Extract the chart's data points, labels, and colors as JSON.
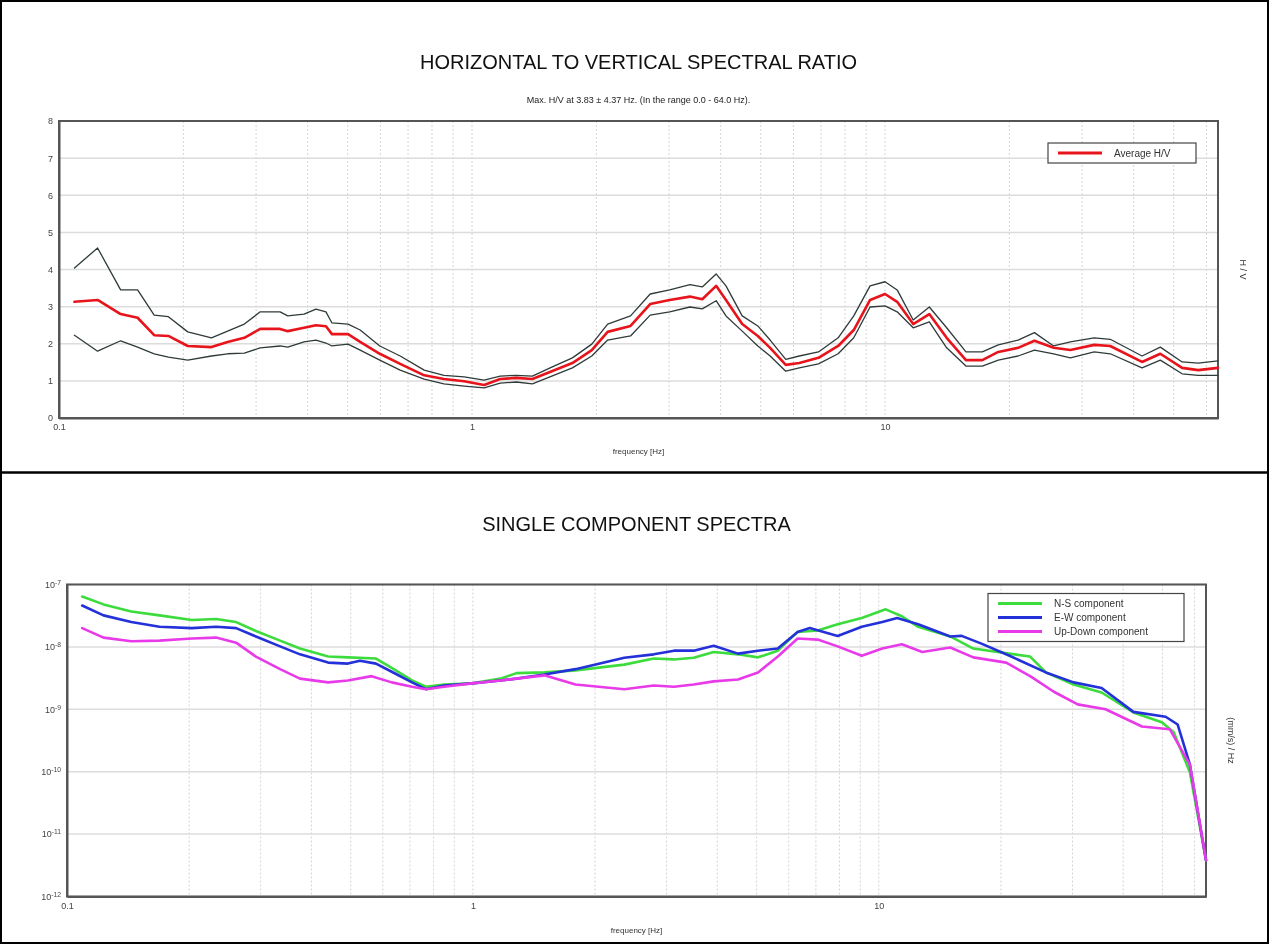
{
  "chart_data": [
    {
      "type": "line",
      "title": "HORIZONTAL TO VERTICAL SPECTRAL RATIO",
      "subtitle": "Max. H/V at 3.83 ± 4.37 Hz. (In the range 0.0 - 64.0 Hz).",
      "xlabel": "frequency [Hz]",
      "ylabel": "H / V",
      "log": "x",
      "grid": true,
      "legend": "top right",
      "marker": "none",
      "line_style": "solid",
      "xlim": [
        0.1,
        64
      ],
      "ylim": [
        0,
        8
      ],
      "xticks": [
        0.1,
        {
          "value": 0.2,
          "label": null
        },
        {
          "value": 0.3,
          "label": null
        },
        {
          "value": 0.4,
          "label": null
        },
        {
          "value": 0.5,
          "label": null
        },
        {
          "value": 0.6,
          "label": null
        },
        {
          "value": 0.7,
          "label": null
        },
        {
          "value": 0.8,
          "label": null
        },
        {
          "value": 0.9,
          "label": null
        },
        1,
        {
          "value": 2,
          "label": null
        },
        {
          "value": 3,
          "label": null
        },
        {
          "value": 4,
          "label": null
        },
        {
          "value": 5,
          "label": null
        },
        {
          "value": 6,
          "label": null
        },
        {
          "value": 7,
          "label": null
        },
        {
          "value": 8,
          "label": null
        },
        {
          "value": 9,
          "label": null
        },
        10,
        {
          "value": 20,
          "label": null
        },
        {
          "value": 30,
          "label": null
        },
        {
          "value": 40,
          "label": null
        },
        {
          "value": 50,
          "label": null
        },
        {
          "value": 60,
          "label": null
        }
      ],
      "yticks": [
        0,
        1,
        2,
        3,
        4,
        5,
        6,
        7,
        8
      ],
      "x": [
        0.109,
        0.124,
        0.141,
        0.155,
        0.17,
        0.184,
        0.205,
        0.234,
        0.256,
        0.281,
        0.307,
        0.343,
        0.358,
        0.392,
        0.419,
        0.443,
        0.458,
        0.501,
        0.536,
        0.598,
        0.67,
        0.766,
        0.855,
        0.957,
        1.07,
        1.17,
        1.28,
        1.4,
        1.56,
        1.75,
        1.95,
        2.13,
        2.42,
        2.7,
        3.01,
        3.37,
        3.61,
        3.9,
        4.12,
        4.51,
        4.92,
        5.27,
        5.75,
        6.2,
        6.9,
        7.7,
        8.4,
        9.2,
        10.0,
        10.7,
        11.7,
        12.8,
        14.1,
        15.7,
        17.2,
        18.8,
        21.0,
        23.0,
        25.6,
        28.1,
        32.1,
        35.1,
        41.9,
        46.4,
        52.4,
        57.3,
        64
      ],
      "series": [
        {
          "color": "#2f3a3a",
          "values": [
            4.04,
            4.58,
            3.45,
            3.45,
            2.77,
            2.73,
            2.32,
            2.16,
            2.34,
            2.53,
            2.86,
            2.86,
            2.75,
            2.8,
            2.93,
            2.86,
            2.56,
            2.53,
            2.37,
            1.94,
            1.67,
            1.29,
            1.15,
            1.11,
            1.02,
            1.13,
            1.15,
            1.13,
            1.37,
            1.62,
            1.99,
            2.53,
            2.75,
            3.34,
            3.45,
            3.59,
            3.53,
            3.88,
            3.56,
            2.75,
            2.48,
            2.1,
            1.58,
            1.67,
            1.78,
            2.16,
            2.75,
            3.56,
            3.67,
            3.45,
            2.64,
            2.99,
            2.43,
            1.78,
            1.78,
            1.97,
            2.1,
            2.3,
            1.94,
            2.05,
            2.16,
            2.12,
            1.67,
            1.91,
            1.51,
            1.48,
            1.54
          ]
        },
        {
          "color": "#2f3a3a",
          "values": [
            2.23,
            1.8,
            2.08,
            1.91,
            1.73,
            1.64,
            1.56,
            1.67,
            1.73,
            1.75,
            1.89,
            1.94,
            1.91,
            2.05,
            2.1,
            2.02,
            1.94,
            1.99,
            1.83,
            1.56,
            1.29,
            1.05,
            0.92,
            0.86,
            0.81,
            0.94,
            0.97,
            0.92,
            1.13,
            1.35,
            1.67,
            2.1,
            2.21,
            2.77,
            2.86,
            2.99,
            2.94,
            3.16,
            2.75,
            2.34,
            1.94,
            1.67,
            1.26,
            1.35,
            1.46,
            1.73,
            2.16,
            2.99,
            3.02,
            2.86,
            2.43,
            2.59,
            1.89,
            1.4,
            1.4,
            1.56,
            1.67,
            1.83,
            1.73,
            1.62,
            1.78,
            1.73,
            1.35,
            1.56,
            1.19,
            1.15,
            1.15
          ]
        },
        {
          "name": "Average H/V",
          "color": "#e8141c",
          "values": [
            3.13,
            3.18,
            2.8,
            2.7,
            2.23,
            2.21,
            1.94,
            1.91,
            2.05,
            2.16,
            2.4,
            2.4,
            2.34,
            2.43,
            2.5,
            2.47,
            2.26,
            2.26,
            2.05,
            1.73,
            1.46,
            1.15,
            1.05,
            0.99,
            0.89,
            1.05,
            1.08,
            1.05,
            1.26,
            1.48,
            1.83,
            2.32,
            2.48,
            3.07,
            3.18,
            3.27,
            3.2,
            3.56,
            3.18,
            2.53,
            2.21,
            1.89,
            1.43,
            1.48,
            1.62,
            1.94,
            2.37,
            3.18,
            3.34,
            3.13,
            2.53,
            2.8,
            2.16,
            1.56,
            1.56,
            1.78,
            1.89,
            2.08,
            1.89,
            1.83,
            1.97,
            1.94,
            1.51,
            1.73,
            1.35,
            1.29,
            1.35
          ]
        }
      ]
    },
    {
      "type": "line",
      "title": "SINGLE COMPONENT SPECTRA",
      "xlabel": "frequency [Hz]",
      "ylabel": "(mm/s) / Hz",
      "log": "xy",
      "grid": true,
      "legend": "top right",
      "marker": "none",
      "line_style": "solid",
      "xlim": [
        0.1,
        64
      ],
      "ylim": [
        1e-12,
        1e-07
      ],
      "xticks": [
        0.1,
        {
          "value": 0.2,
          "label": null
        },
        {
          "value": 0.3,
          "label": null
        },
        {
          "value": 0.4,
          "label": null
        },
        {
          "value": 0.5,
          "label": null
        },
        {
          "value": 0.6,
          "label": null
        },
        {
          "value": 0.7,
          "label": null
        },
        {
          "value": 0.8,
          "label": null
        },
        {
          "value": 0.9,
          "label": null
        },
        1,
        {
          "value": 2,
          "label": null
        },
        {
          "value": 3,
          "label": null
        },
        {
          "value": 4,
          "label": null
        },
        {
          "value": 5,
          "label": null
        },
        {
          "value": 6,
          "label": null
        },
        {
          "value": 7,
          "label": null
        },
        {
          "value": 8,
          "label": null
        },
        {
          "value": 9,
          "label": null
        },
        10,
        {
          "value": 20,
          "label": null
        },
        {
          "value": 30,
          "label": null
        },
        {
          "value": 40,
          "label": null
        },
        {
          "value": 50,
          "label": null
        },
        {
          "value": 60,
          "label": null
        }
      ],
      "yticks": [
        {
          "value": 1e-12,
          "label": "10$^{-12}$"
        },
        {
          "value": 1e-11,
          "label": "10$^{-11}$"
        },
        {
          "value": 1e-10,
          "label": "10$^{-10}$"
        },
        {
          "value": 1e-09,
          "label": "10$^{-9}$"
        },
        {
          "value": 1e-08,
          "label": "10$^{-8}$"
        },
        {
          "value": 1e-07,
          "label": "10$^{-7}$"
        }
      ],
      "series": [
        {
          "name": "N-S component",
          "color": "#3ddc3d",
          "x": [
            0.109,
            0.123,
            0.144,
            0.169,
            0.203,
            0.233,
            0.261,
            0.292,
            0.335,
            0.375,
            0.44,
            0.492,
            0.577,
            0.631,
            0.708,
            0.766,
            0.849,
            0.995,
            1.17,
            1.28,
            1.5,
            1.79,
            2.36,
            2.79,
            3.13,
            3.5,
            3.92,
            4.5,
            5.04,
            5.64,
            6.31,
            7.07,
            7.92,
            9.08,
            10.4,
            11.4,
            12.5,
            15.0,
            17.1,
            23.6,
            25.8,
            30.2,
            35.4,
            42.4,
            49.8,
            53.3,
            58.4,
            64
          ],
          "values": [
            6.4e-08,
            4.8e-08,
            3.7e-08,
            3.2e-08,
            2.7e-08,
            2.8e-08,
            2.5e-08,
            1.8e-08,
            1.26e-08,
            9.4e-09,
            7e-09,
            6.8e-09,
            6.5e-09,
            4.6e-09,
            2.9e-09,
            2.3e-09,
            2.5e-09,
            2.6e-09,
            3.1e-09,
            3.8e-09,
            3.9e-09,
            4.2e-09,
            5.2e-09,
            6.5e-09,
            6.3e-09,
            6.7e-09,
            8.3e-09,
            7.6e-09,
            6.8e-09,
            8.7e-09,
            1.74e-08,
            1.83e-08,
            2.3e-08,
            2.9e-08,
            4e-08,
            3.1e-08,
            2.1e-08,
            1.47e-08,
            9.4e-09,
            7e-09,
            3.9e-09,
            2.5e-09,
            1.86e-09,
            8.9e-10,
            6.2e-10,
            4.3e-10,
            9.8e-11,
            3.8e-12
          ]
        },
        {
          "name": "E-W component",
          "color": "#2430d8",
          "x": [
            0.109,
            0.123,
            0.144,
            0.169,
            0.203,
            0.233,
            0.261,
            0.292,
            0.335,
            0.375,
            0.44,
            0.492,
            0.527,
            0.577,
            0.631,
            0.708,
            0.766,
            0.849,
            0.995,
            1.17,
            1.28,
            1.5,
            1.79,
            2.36,
            2.79,
            3.13,
            3.5,
            3.92,
            4.5,
            5.04,
            5.64,
            6.31,
            6.76,
            7.92,
            9.08,
            10.2,
            11.1,
            12.5,
            15.0,
            16.0,
            17.9,
            21.0,
            25.8,
            30.2,
            35.4,
            42.4,
            50.9,
            54.5,
            58.4,
            64
          ],
          "values": [
            4.6e-08,
            3.2e-08,
            2.5e-08,
            2.1e-08,
            2e-08,
            2.1e-08,
            2e-08,
            1.47e-08,
            1.02e-08,
            7.6e-09,
            5.6e-09,
            5.4e-09,
            6e-09,
            5.4e-09,
            4e-09,
            2.7e-09,
            2.1e-09,
            2.4e-09,
            2.6e-09,
            2.9e-09,
            3.1e-09,
            3.6e-09,
            4.4e-09,
            6.7e-09,
            7.6e-09,
            8.7e-09,
            8.7e-09,
            1.04e-08,
            7.8e-09,
            8.7e-09,
            9.4e-09,
            1.74e-08,
            2e-08,
            1.5e-08,
            2.1e-08,
            2.5e-08,
            2.9e-08,
            2.3e-08,
            1.47e-08,
            1.5e-08,
            1.13e-08,
            7.2e-09,
            3.9e-09,
            2.7e-09,
            2.2e-09,
            9.1e-10,
            7.6e-10,
            5.7e-10,
            1.31e-10,
            3.8e-12
          ]
        },
        {
          "name": "Up-Down component",
          "color": "#e83ae8",
          "x": [
            0.109,
            0.123,
            0.144,
            0.169,
            0.203,
            0.233,
            0.261,
            0.292,
            0.335,
            0.375,
            0.44,
            0.492,
            0.563,
            0.631,
            0.708,
            0.766,
            0.849,
            0.995,
            1.17,
            1.28,
            1.5,
            1.79,
            2.36,
            2.79,
            3.13,
            3.5,
            3.92,
            4.5,
            5.04,
            5.64,
            6.31,
            7.07,
            7.92,
            9.08,
            10.2,
            11.4,
            12.8,
            15.0,
            17.1,
            20.6,
            23.6,
            27.0,
            30.9,
            36.2,
            44.5,
            52.1,
            58.4,
            64
          ],
          "values": [
            2e-08,
            1.41e-08,
            1.23e-08,
            1.26e-08,
            1.36e-08,
            1.41e-08,
            1.17e-08,
            7e-09,
            4.4e-09,
            3.1e-09,
            2.7e-09,
            2.9e-09,
            3.4e-09,
            2.7e-09,
            2.3e-09,
            2.1e-09,
            2.3e-09,
            2.6e-09,
            2.9e-09,
            3.1e-09,
            3.5e-09,
            2.5e-09,
            2.1e-09,
            2.4e-09,
            2.3e-09,
            2.5e-09,
            2.8e-09,
            3e-09,
            3.9e-09,
            7e-09,
            1.36e-08,
            1.31e-08,
            1.02e-08,
            7.2e-09,
            9.4e-09,
            1.1e-08,
            8.3e-09,
            9.8e-09,
            6.8e-09,
            5.6e-09,
            3.4e-09,
            1.91e-09,
            1.2e-09,
            1e-09,
            5.3e-10,
            4.8e-10,
            1.3e-10,
            3.8e-12
          ]
        }
      ]
    }
  ]
}
